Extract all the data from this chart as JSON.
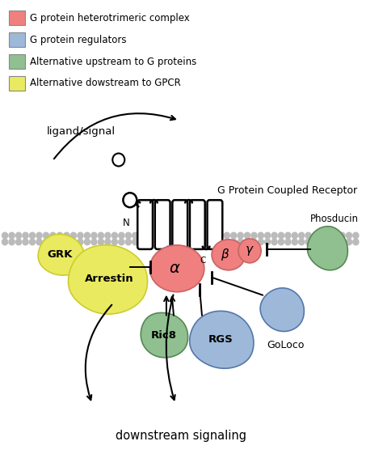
{
  "legend": [
    {
      "color": "#F08080",
      "label": "G protein heterotrimeric complex"
    },
    {
      "color": "#9DB8D9",
      "label": "G protein regulators"
    },
    {
      "color": "#90C090",
      "label": "Alternative upstream to G proteins"
    },
    {
      "color": "#EAEA60",
      "label": "Alternative dowstream to GPCR"
    }
  ],
  "bg_color": "#FFFFFF",
  "title_gpcr": "G Protein Coupled Receptor",
  "title_downstream": "downstream signaling",
  "title_ligand": "ligand/signal",
  "alpha_color": "#F08080",
  "alpha_edge": "#CC6666",
  "beta_color": "#F08080",
  "beta_edge": "#CC6666",
  "gamma_color": "#F08080",
  "gamma_edge": "#CC6666",
  "arrestin_color": "#EAEA60",
  "arrestin_edge": "#CCCC30",
  "grk_color": "#EAEA60",
  "grk_edge": "#CCCC30",
  "ric8_color": "#90C090",
  "ric8_edge": "#558855",
  "rgs_color": "#9DB8D9",
  "rgs_edge": "#5577AA",
  "goloco_color": "#9DB8D9",
  "goloco_edge": "#5577AA",
  "phosducin_color": "#90C090",
  "phosducin_edge": "#558855",
  "membrane_color": "#BBBBBB"
}
